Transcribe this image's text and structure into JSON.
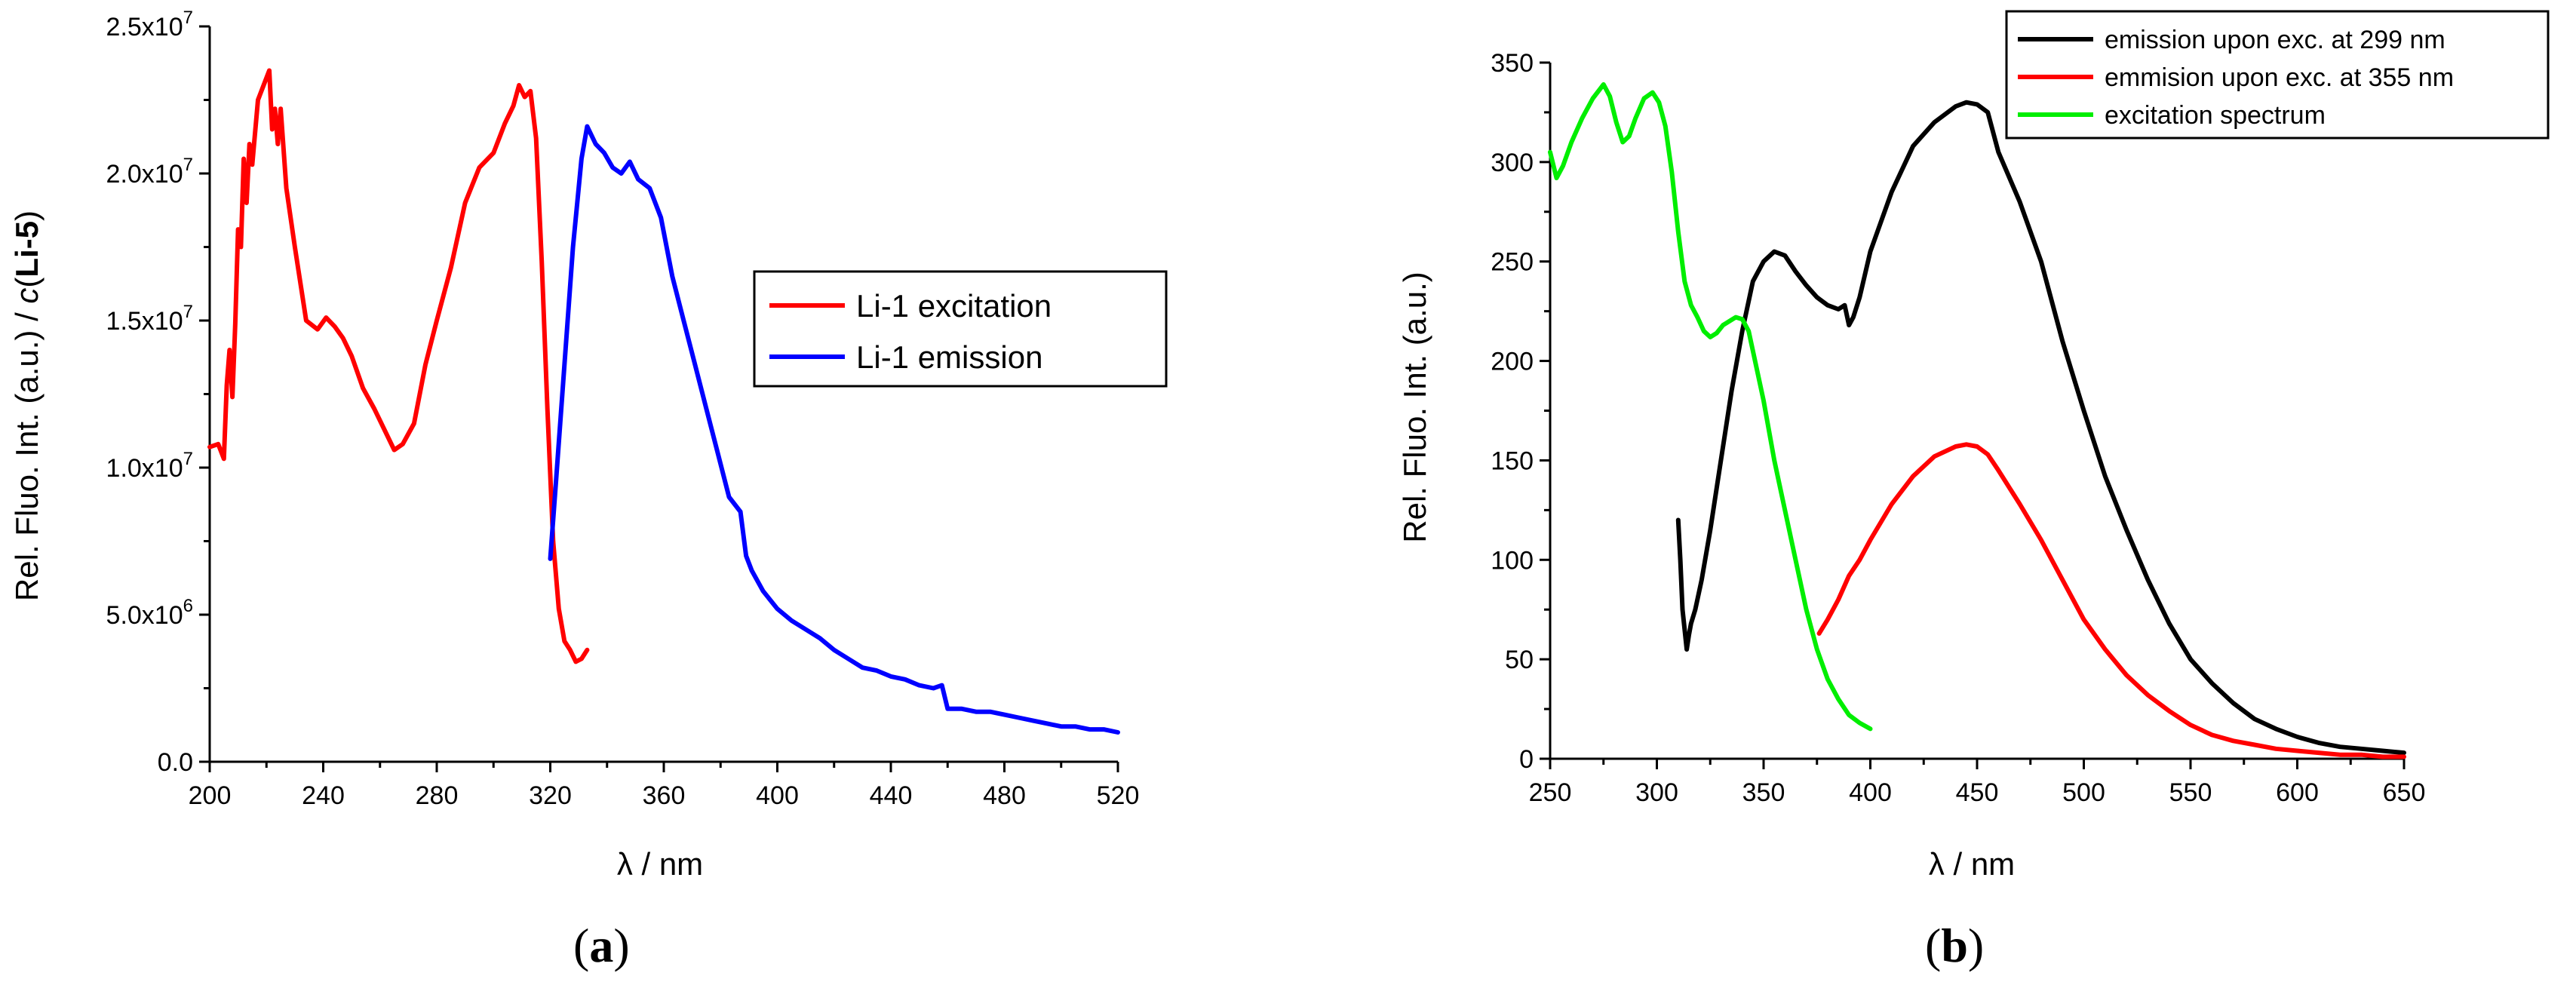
{
  "chart_data": [
    {
      "type": "line",
      "panel_label": "a",
      "xlabel": "λ / nm",
      "ylabel_parts": [
        "Rel. Fluo. Int. (a.u.) / ",
        "c",
        "(",
        "Li-5",
        ")"
      ],
      "xlim": [
        200,
        520
      ],
      "ylim": [
        0,
        25000000
      ],
      "xticks": [
        200,
        240,
        280,
        320,
        360,
        400,
        440,
        480,
        520
      ],
      "ytick_values": [
        0,
        5000000,
        10000000,
        15000000,
        20000000,
        25000000
      ],
      "ytick_mantissa": [
        "0.0",
        "5.0x10",
        "1.0x10",
        "1.5x10",
        "2.0x10",
        "2.5x10"
      ],
      "ytick_exponent": [
        "",
        "6",
        "7",
        "7",
        "7",
        "7"
      ],
      "legend_position": "right",
      "series": [
        {
          "name": "Li-1 excitation",
          "color": "#ff0000",
          "x": [
            200,
            203,
            205,
            206,
            207,
            208,
            209,
            210,
            211,
            212,
            213,
            214,
            215,
            217,
            219,
            221,
            222,
            223,
            224,
            225,
            227,
            230,
            234,
            238,
            241,
            244,
            247,
            250,
            254,
            258,
            262,
            265,
            268,
            272,
            276,
            280,
            285,
            290,
            295,
            300,
            304,
            307,
            309,
            311,
            313,
            315,
            317,
            319,
            321,
            323,
            325,
            327,
            329,
            331,
            333
          ],
          "y": [
            10700000,
            10800000,
            10300000,
            12800000,
            14000000,
            12400000,
            14900000,
            18100000,
            17500000,
            20500000,
            19000000,
            21000000,
            20300000,
            22500000,
            23000000,
            23500000,
            21500000,
            22200000,
            21000000,
            22200000,
            19500000,
            17500000,
            15000000,
            14700000,
            15100000,
            14800000,
            14400000,
            13800000,
            12700000,
            12000000,
            11200000,
            10600000,
            10800000,
            11500000,
            13500000,
            15000000,
            16800000,
            19000000,
            20200000,
            20700000,
            21700000,
            22300000,
            23000000,
            22600000,
            22800000,
            21200000,
            17000000,
            12000000,
            7500000,
            5200000,
            4100000,
            3800000,
            3400000,
            3500000,
            3800000
          ]
        },
        {
          "name": "Li-1 emission",
          "color": "#0000ff",
          "x": [
            320,
            322,
            325,
            328,
            331,
            333,
            336,
            339,
            342,
            345,
            348,
            351,
            355,
            359,
            363,
            367,
            371,
            375,
            379,
            383,
            387,
            389,
            391,
            395,
            400,
            405,
            410,
            415,
            420,
            425,
            430,
            435,
            440,
            445,
            450,
            455,
            458,
            460,
            465,
            470,
            475,
            480,
            485,
            490,
            495,
            500,
            505,
            510,
            515,
            520
          ],
          "y": [
            6900000,
            9500000,
            13500000,
            17500000,
            20500000,
            21600000,
            21000000,
            20700000,
            20200000,
            20000000,
            20400000,
            19800000,
            19500000,
            18500000,
            16500000,
            15000000,
            13500000,
            12000000,
            10500000,
            9000000,
            8500000,
            7000000,
            6500000,
            5800000,
            5200000,
            4800000,
            4500000,
            4200000,
            3800000,
            3500000,
            3200000,
            3100000,
            2900000,
            2800000,
            2600000,
            2500000,
            2600000,
            1800000,
            1800000,
            1700000,
            1700000,
            1600000,
            1500000,
            1400000,
            1300000,
            1200000,
            1200000,
            1100000,
            1100000,
            1000000
          ]
        }
      ]
    },
    {
      "type": "line",
      "panel_label": "b",
      "xlabel": "λ / nm",
      "ylabel": "Rel. Fluo. Int. (a.u.)",
      "xlim": [
        250,
        650
      ],
      "ylim": [
        0,
        350
      ],
      "xticks": [
        250,
        300,
        350,
        400,
        450,
        500,
        550,
        600,
        650
      ],
      "yticks": [
        0,
        50,
        100,
        150,
        200,
        250,
        300,
        350
      ],
      "legend_position": "top-right",
      "series": [
        {
          "name": "emission upon exc. at 299 nm",
          "color": "#000000",
          "x": [
            310,
            311,
            312,
            313,
            314,
            315,
            316,
            318,
            321,
            325,
            330,
            335,
            340,
            345,
            350,
            355,
            360,
            365,
            370,
            375,
            380,
            385,
            388,
            390,
            392,
            395,
            400,
            410,
            420,
            430,
            440,
            445,
            450,
            455,
            460,
            470,
            480,
            490,
            500,
            510,
            520,
            530,
            540,
            550,
            560,
            570,
            580,
            590,
            600,
            610,
            620,
            630,
            640,
            650
          ],
          "y": [
            120,
            100,
            75,
            65,
            55,
            62,
            68,
            75,
            90,
            115,
            150,
            185,
            215,
            240,
            250,
            255,
            253,
            245,
            238,
            232,
            228,
            226,
            228,
            218,
            222,
            232,
            255,
            285,
            308,
            320,
            328,
            330,
            329,
            325,
            305,
            280,
            250,
            210,
            175,
            142,
            115,
            90,
            68,
            50,
            38,
            28,
            20,
            15,
            11,
            8,
            6,
            5,
            4,
            3
          ]
        },
        {
          "name": "emmision upon exc. at 355 nm",
          "color": "#ff0000",
          "x": [
            376,
            380,
            385,
            390,
            395,
            400,
            410,
            420,
            430,
            440,
            445,
            450,
            455,
            460,
            470,
            480,
            490,
            500,
            510,
            520,
            530,
            540,
            550,
            560,
            570,
            580,
            590,
            600,
            610,
            620,
            630,
            640,
            650
          ],
          "y": [
            63,
            70,
            80,
            92,
            100,
            110,
            128,
            142,
            152,
            157,
            158,
            157,
            153,
            145,
            128,
            110,
            90,
            70,
            55,
            42,
            32,
            24,
            17,
            12,
            9,
            7,
            5,
            4,
            3,
            2,
            2,
            1,
            1
          ],
          "endpoint_y": 1
        },
        {
          "name": "excitation spectrum",
          "color": "#00ee00",
          "x": [
            250,
            253,
            256,
            260,
            265,
            270,
            275,
            278,
            281,
            284,
            287,
            290,
            294,
            298,
            301,
            304,
            307,
            310,
            313,
            316,
            319,
            322,
            325,
            328,
            331,
            334,
            337,
            340,
            343,
            346,
            350,
            355,
            360,
            365,
            370,
            375,
            380,
            385,
            390,
            395,
            400
          ],
          "y": [
            305,
            292,
            298,
            310,
            322,
            332,
            339,
            333,
            320,
            310,
            313,
            322,
            332,
            335,
            330,
            318,
            295,
            265,
            240,
            228,
            222,
            215,
            212,
            214,
            218,
            220,
            222,
            221,
            215,
            200,
            180,
            150,
            125,
            100,
            75,
            55,
            40,
            30,
            22,
            18,
            15
          ]
        }
      ]
    }
  ]
}
